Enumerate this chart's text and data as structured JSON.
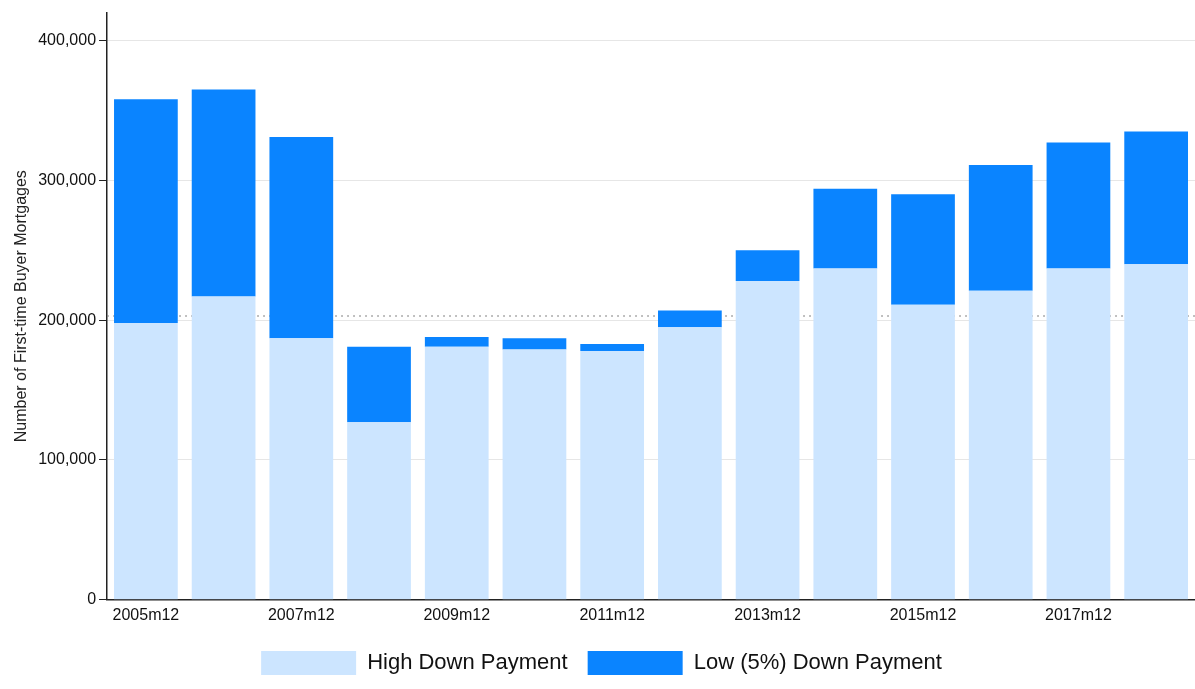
{
  "chart_data": {
    "type": "bar",
    "stacked": true,
    "ylabel": "Number of First-time Buyer Mortgages",
    "categories": [
      "2005m12",
      null,
      "2007m12",
      null,
      "2009m12",
      null,
      "2011m12",
      null,
      "2013m12",
      null,
      "2015m12",
      null,
      "2017m12",
      null
    ],
    "series": [
      {
        "name": "High Down Payment",
        "color": "#cce5ff",
        "values": [
          198000,
          217000,
          187000,
          127000,
          181000,
          179000,
          178000,
          195000,
          228000,
          237000,
          211000,
          221000,
          237000,
          240000
        ]
      },
      {
        "name": "Low (5%) Down Payment",
        "color": "#0a84ff",
        "values": [
          160000,
          148000,
          144000,
          54000,
          7000,
          8000,
          5000,
          12000,
          22000,
          57000,
          79000,
          90000,
          90000,
          95000
        ]
      }
    ],
    "ylim": [
      0,
      420000
    ],
    "yticks": [
      {
        "value": 0,
        "label": "0"
      },
      {
        "value": 100000,
        "label": "100,000"
      },
      {
        "value": 200000,
        "label": "200,000"
      },
      {
        "value": 300000,
        "label": "300,000"
      },
      {
        "value": 400000,
        "label": "400,000"
      }
    ],
    "ref_lines": [
      {
        "axis": "y",
        "value": 203000,
        "color": "#808080",
        "line_style": "dotted"
      }
    ],
    "grid": "y",
    "legend": "bottom"
  }
}
